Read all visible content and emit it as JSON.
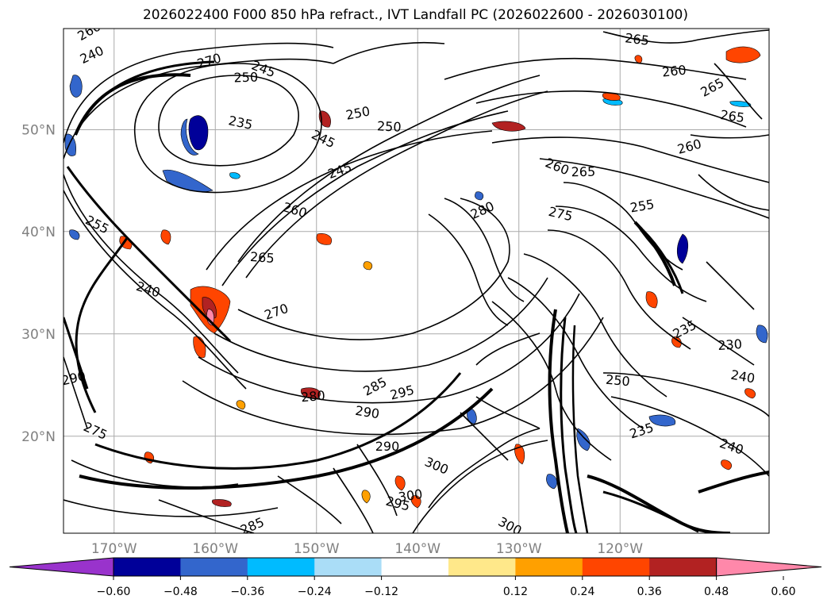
{
  "title": "2026022400 F000 850 hPa refract., IVT Landfall PC (2026022600 - 2026030100)",
  "map": {
    "lat_labels": [
      {
        "value": 50,
        "label": "50°N"
      },
      {
        "value": 40,
        "label": "40°N"
      },
      {
        "value": 30,
        "label": "30°N"
      },
      {
        "value": 20,
        "label": "20°N"
      }
    ],
    "lon_labels": [
      {
        "value": -170,
        "label": "170°W"
      },
      {
        "value": -160,
        "label": "160°W"
      },
      {
        "value": -150,
        "label": "150°W"
      },
      {
        "value": -140,
        "label": "140°W"
      },
      {
        "value": -130,
        "label": "130°W"
      },
      {
        "value": -120,
        "label": "120°W"
      }
    ],
    "contour_labels": [
      "260",
      "265",
      "270",
      "245",
      "250",
      "240",
      "235",
      "250",
      "245",
      "250",
      "245",
      "260",
      "260",
      "265",
      "265",
      "260",
      "260",
      "265",
      "280",
      "275",
      "255",
      "255",
      "265",
      "270",
      "240",
      "280",
      "285",
      "290",
      "295",
      "300",
      "290",
      "285",
      "295",
      "300",
      "300",
      "250",
      "235",
      "240",
      "230",
      "235",
      "240",
      "290",
      "275"
    ],
    "colors": {
      "label_gray": "#808080",
      "grid": "#aaaaaa"
    }
  },
  "colorbar": {
    "tick_labels": [
      "−0.60",
      "−0.48",
      "−0.36",
      "−0.24",
      "−0.12",
      "0.12",
      "0.24",
      "0.36",
      "0.48",
      "0.60"
    ],
    "segments": [
      {
        "color": "#9933cc"
      },
      {
        "color": "#000099"
      },
      {
        "color": "#3366cc"
      },
      {
        "color": "#00bbff"
      },
      {
        "color": "#aaddf7"
      },
      {
        "color": "#ffffff"
      },
      {
        "color": "#ffe88a"
      },
      {
        "color": "#ffa000"
      },
      {
        "color": "#ff4500"
      },
      {
        "color": "#b22222"
      },
      {
        "color": "#ff88aa"
      }
    ]
  }
}
